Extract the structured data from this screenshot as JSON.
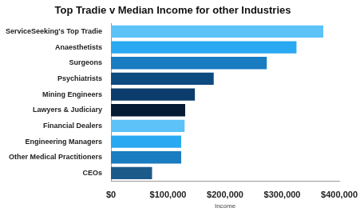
{
  "chart_data": {
    "type": "bar",
    "orientation": "horizontal",
    "title": "Top Tradie v Median Income for other Industries",
    "x_label": "Income",
    "categories": [
      "ServiceSeeking's Top Tradie",
      "Anaesthetists",
      "Surgeons",
      "Psychiatrists",
      "Mining Engineers",
      "Lawyers & Judiciary",
      "Financial Dealers",
      "Engineering Managers",
      "Other Medical Practitioners",
      "CEOs"
    ],
    "values": [
      372000,
      325000,
      273000,
      180000,
      147000,
      130000,
      129000,
      123000,
      123000,
      72000
    ],
    "colors": [
      "#5cc2f7",
      "#29a9f2",
      "#1a7cc1",
      "#0d4a7f",
      "#0b3c6b",
      "#051a33",
      "#5cc2f7",
      "#29a9f2",
      "#1a7cc1",
      "#1c5a8a"
    ],
    "xlim": [
      0,
      400000
    ],
    "xticks": [
      {
        "value": 0,
        "label": "$0"
      },
      {
        "value": 100000,
        "label": "$100,000"
      },
      {
        "value": 200000,
        "label": "$200,000"
      },
      {
        "value": 300000,
        "label": "$300,000"
      },
      {
        "value": 400000,
        "label": "$400,000"
      }
    ],
    "grid": false
  }
}
